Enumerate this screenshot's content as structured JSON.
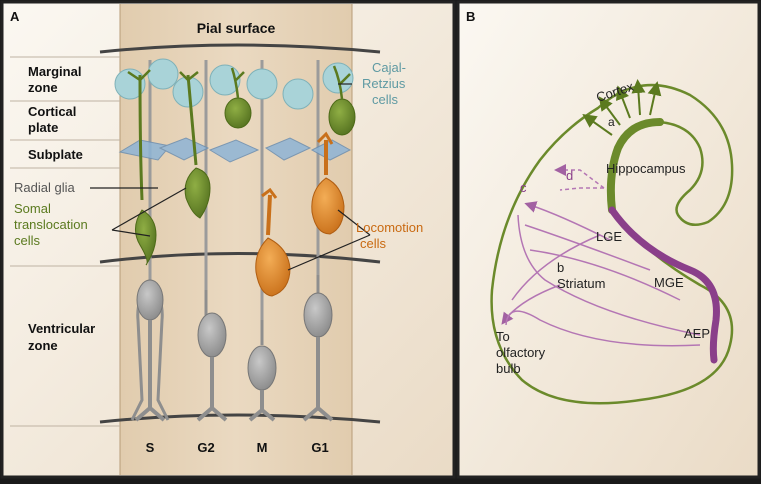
{
  "panel_a": {
    "letter": "A",
    "title": "Pial surface",
    "layers": {
      "marginal_1": "Marginal",
      "marginal_2": "zone",
      "cortical_1": "Cortical",
      "cortical_2": "plate",
      "subplate": "Subplate",
      "ventricular_1": "Ventricular",
      "ventricular_2": "zone"
    },
    "labels": {
      "radial_glia": "Radial glia",
      "somal_1": "Somal",
      "somal_2": "translocation",
      "somal_3": "cells",
      "cajal_1": "Cajal-",
      "cajal_2": "Retzius",
      "cajal_3": "cells",
      "locomotion_1": "Locomotion",
      "locomotion_2": "cells"
    },
    "columns": [
      "S",
      "G2",
      "M",
      "G1"
    ]
  },
  "panel_b": {
    "letter": "B",
    "labels": {
      "cortex": "Cortex",
      "a": "a",
      "c": "c",
      "d": "d",
      "hippocampus": "Hippocampus",
      "lge": "LGE",
      "b": "b",
      "striatum": "Striatum",
      "mge": "MGE",
      "aep": "AEP",
      "olfactory_1": "To",
      "olfactory_2": "olfactory",
      "olfactory_3": "bulb"
    }
  },
  "colors": {
    "frame": "#222222",
    "background_light": "#f4ede2",
    "band": "#e3cfb3",
    "green": "#6b8a2b",
    "orange": "#d8821e",
    "gray_cell": "#9a9a9a",
    "cajal": "#a9d3d8",
    "purple": "#8a3f8a",
    "lilac": "#b476b4"
  }
}
